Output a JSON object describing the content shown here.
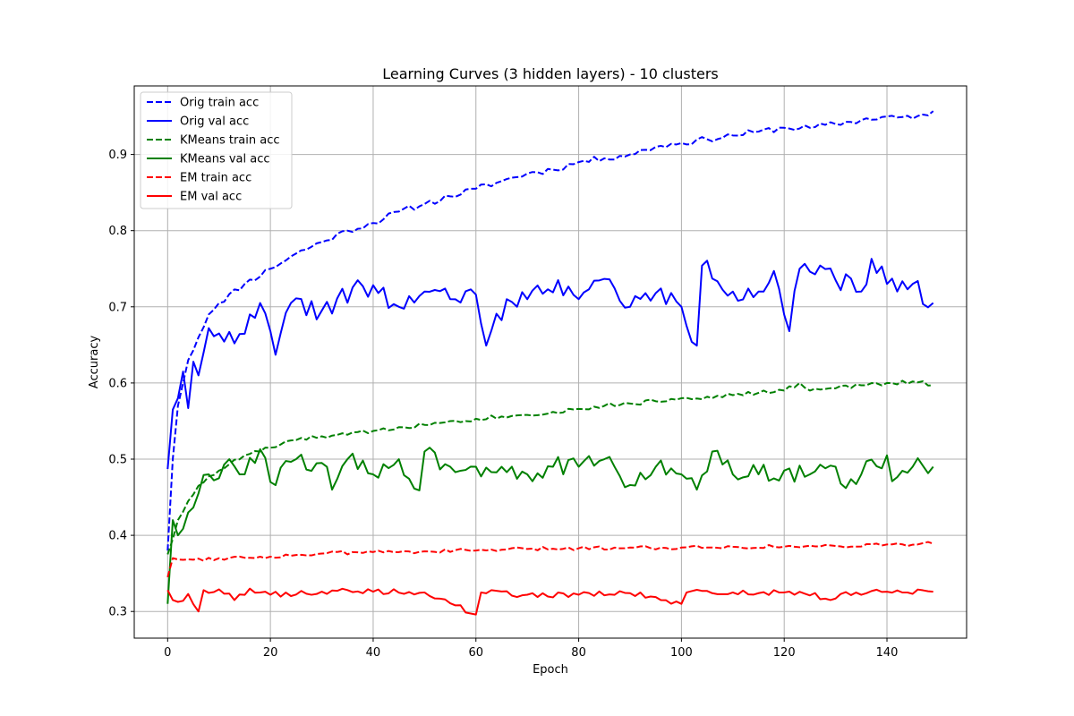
{
  "chart_data": {
    "type": "line",
    "title": "Learning Curves (3 hidden layers) - 10 clusters",
    "xlabel": "Epoch",
    "ylabel": "Accuracy",
    "xlim": [
      -6.5,
      155.5
    ],
    "ylim": [
      0.265,
      0.99
    ],
    "xticks": [
      0,
      20,
      40,
      60,
      80,
      100,
      120,
      140
    ],
    "xtick_labels": [
      "0",
      "20",
      "40",
      "60",
      "80",
      "100",
      "120",
      "140"
    ],
    "yticks": [
      0.3,
      0.4,
      0.5,
      0.6,
      0.7,
      0.8,
      0.9
    ],
    "ytick_labels": [
      "0.3",
      "0.4",
      "0.5",
      "0.6",
      "0.7",
      "0.8",
      "0.9"
    ],
    "grid": true,
    "legend_position": "top-left",
    "series": [
      {
        "name": "Orig train acc",
        "color": "#0000ff",
        "style": "dashed",
        "anchors": [
          [
            0,
            0.38
          ],
          [
            1,
            0.5
          ],
          [
            2,
            0.57
          ],
          [
            3,
            0.6
          ],
          [
            4,
            0.63
          ],
          [
            6,
            0.66
          ],
          [
            8,
            0.69
          ],
          [
            10,
            0.705
          ],
          [
            15,
            0.73
          ],
          [
            20,
            0.75
          ],
          [
            25,
            0.77
          ],
          [
            30,
            0.785
          ],
          [
            35,
            0.8
          ],
          [
            40,
            0.81
          ],
          [
            45,
            0.825
          ],
          [
            50,
            0.835
          ],
          [
            55,
            0.845
          ],
          [
            60,
            0.855
          ],
          [
            65,
            0.865
          ],
          [
            70,
            0.875
          ],
          [
            75,
            0.88
          ],
          [
            80,
            0.89
          ],
          [
            85,
            0.895
          ],
          [
            90,
            0.9
          ],
          [
            95,
            0.91
          ],
          [
            100,
            0.915
          ],
          [
            105,
            0.92
          ],
          [
            110,
            0.925
          ],
          [
            115,
            0.93
          ],
          [
            120,
            0.935
          ],
          [
            125,
            0.935
          ],
          [
            130,
            0.94
          ],
          [
            135,
            0.945
          ],
          [
            140,
            0.95
          ],
          [
            145,
            0.947
          ],
          [
            149,
            0.957
          ]
        ],
        "noise": 0.004,
        "seed": 11
      },
      {
        "name": "Orig val acc",
        "color": "#0000ff",
        "style": "solid",
        "anchors": [
          [
            0,
            0.487
          ],
          [
            1,
            0.565
          ],
          [
            2,
            0.58
          ],
          [
            3,
            0.615
          ],
          [
            4,
            0.567
          ],
          [
            5,
            0.628
          ],
          [
            6,
            0.61
          ],
          [
            7,
            0.64
          ],
          [
            8,
            0.672
          ],
          [
            10,
            0.665
          ],
          [
            13,
            0.652
          ],
          [
            16,
            0.69
          ],
          [
            18,
            0.705
          ],
          [
            21,
            0.637
          ],
          [
            24,
            0.705
          ],
          [
            30,
            0.695
          ],
          [
            38,
            0.727
          ],
          [
            45,
            0.7
          ],
          [
            50,
            0.72
          ],
          [
            55,
            0.71
          ],
          [
            60,
            0.716
          ],
          [
            62,
            0.649
          ],
          [
            66,
            0.71
          ],
          [
            70,
            0.71
          ],
          [
            76,
            0.735
          ],
          [
            80,
            0.71
          ],
          [
            86,
            0.736
          ],
          [
            90,
            0.7
          ],
          [
            95,
            0.718
          ],
          [
            100,
            0.7
          ],
          [
            103,
            0.649
          ],
          [
            104,
            0.754
          ],
          [
            110,
            0.72
          ],
          [
            115,
            0.72
          ],
          [
            118,
            0.747
          ],
          [
            121,
            0.668
          ],
          [
            123,
            0.75
          ],
          [
            130,
            0.735
          ],
          [
            135,
            0.72
          ],
          [
            137,
            0.763
          ],
          [
            140,
            0.73
          ],
          [
            145,
            0.73
          ],
          [
            149,
            0.705
          ]
        ],
        "noise": 0.014,
        "seed": 22
      },
      {
        "name": "KMeans train acc",
        "color": "#008000",
        "style": "dashed",
        "anchors": [
          [
            0,
            0.375
          ],
          [
            1,
            0.395
          ],
          [
            2,
            0.42
          ],
          [
            4,
            0.445
          ],
          [
            6,
            0.465
          ],
          [
            10,
            0.485
          ],
          [
            15,
            0.505
          ],
          [
            20,
            0.515
          ],
          [
            25,
            0.525
          ],
          [
            30,
            0.53
          ],
          [
            35,
            0.532
          ],
          [
            40,
            0.537
          ],
          [
            45,
            0.542
          ],
          [
            50,
            0.545
          ],
          [
            55,
            0.55
          ],
          [
            60,
            0.553
          ],
          [
            65,
            0.556
          ],
          [
            70,
            0.558
          ],
          [
            75,
            0.562
          ],
          [
            80,
            0.566
          ],
          [
            85,
            0.57
          ],
          [
            90,
            0.573
          ],
          [
            95,
            0.576
          ],
          [
            100,
            0.58
          ],
          [
            105,
            0.582
          ],
          [
            110,
            0.584
          ],
          [
            115,
            0.587
          ],
          [
            120,
            0.59
          ],
          [
            123,
            0.6
          ],
          [
            125,
            0.59
          ],
          [
            130,
            0.593
          ],
          [
            135,
            0.597
          ],
          [
            140,
            0.6
          ],
          [
            145,
            0.602
          ],
          [
            149,
            0.597
          ]
        ],
        "noise": 0.003,
        "seed": 33
      },
      {
        "name": "KMeans val acc",
        "color": "#008000",
        "style": "solid",
        "anchors": [
          [
            0,
            0.31
          ],
          [
            1,
            0.42
          ],
          [
            2,
            0.4
          ],
          [
            4,
            0.43
          ],
          [
            6,
            0.455
          ],
          [
            8,
            0.48
          ],
          [
            10,
            0.475
          ],
          [
            12,
            0.5
          ],
          [
            14,
            0.48
          ],
          [
            17,
            0.495
          ],
          [
            18,
            0.513
          ],
          [
            20,
            0.47
          ],
          [
            25,
            0.5
          ],
          [
            30,
            0.495
          ],
          [
            32,
            0.46
          ],
          [
            35,
            0.5
          ],
          [
            40,
            0.48
          ],
          [
            45,
            0.5
          ],
          [
            49,
            0.459
          ],
          [
            50,
            0.51
          ],
          [
            55,
            0.49
          ],
          [
            60,
            0.49
          ],
          [
            65,
            0.49
          ],
          [
            70,
            0.48
          ],
          [
            75,
            0.49
          ],
          [
            80,
            0.49
          ],
          [
            85,
            0.5
          ],
          [
            90,
            0.466
          ],
          [
            95,
            0.49
          ],
          [
            100,
            0.48
          ],
          [
            103,
            0.46
          ],
          [
            106,
            0.51
          ],
          [
            110,
            0.48
          ],
          [
            115,
            0.48
          ],
          [
            120,
            0.485
          ],
          [
            125,
            0.48
          ],
          [
            130,
            0.49
          ],
          [
            132,
            0.462
          ],
          [
            135,
            0.48
          ],
          [
            140,
            0.505
          ],
          [
            141,
            0.471
          ],
          [
            145,
            0.49
          ],
          [
            149,
            0.49
          ]
        ],
        "noise": 0.013,
        "seed": 44
      },
      {
        "name": "EM train acc",
        "color": "#ff0000",
        "style": "dashed",
        "anchors": [
          [
            0,
            0.345
          ],
          [
            1,
            0.37
          ],
          [
            5,
            0.368
          ],
          [
            10,
            0.37
          ],
          [
            20,
            0.372
          ],
          [
            30,
            0.376
          ],
          [
            40,
            0.378
          ],
          [
            50,
            0.379
          ],
          [
            60,
            0.38
          ],
          [
            70,
            0.382
          ],
          [
            80,
            0.383
          ],
          [
            90,
            0.384
          ],
          [
            100,
            0.384
          ],
          [
            110,
            0.385
          ],
          [
            120,
            0.385
          ],
          [
            130,
            0.386
          ],
          [
            140,
            0.388
          ],
          [
            149,
            0.389
          ]
        ],
        "noise": 0.0025,
        "seed": 55
      },
      {
        "name": "EM val acc",
        "color": "#ff0000",
        "style": "solid",
        "anchors": [
          [
            0,
            0.328
          ],
          [
            1,
            0.315
          ],
          [
            3,
            0.314
          ],
          [
            4,
            0.323
          ],
          [
            6,
            0.3
          ],
          [
            7,
            0.328
          ],
          [
            10,
            0.329
          ],
          [
            13,
            0.315
          ],
          [
            16,
            0.33
          ],
          [
            20,
            0.322
          ],
          [
            30,
            0.326
          ],
          [
            40,
            0.326
          ],
          [
            50,
            0.325
          ],
          [
            60,
            0.296
          ],
          [
            61,
            0.325
          ],
          [
            70,
            0.322
          ],
          [
            80,
            0.322
          ],
          [
            90,
            0.324
          ],
          [
            100,
            0.31
          ],
          [
            101,
            0.325
          ],
          [
            110,
            0.325
          ],
          [
            120,
            0.325
          ],
          [
            130,
            0.317
          ],
          [
            131,
            0.323
          ],
          [
            140,
            0.326
          ],
          [
            149,
            0.326
          ]
        ],
        "noise": 0.004,
        "seed": 66
      }
    ]
  }
}
